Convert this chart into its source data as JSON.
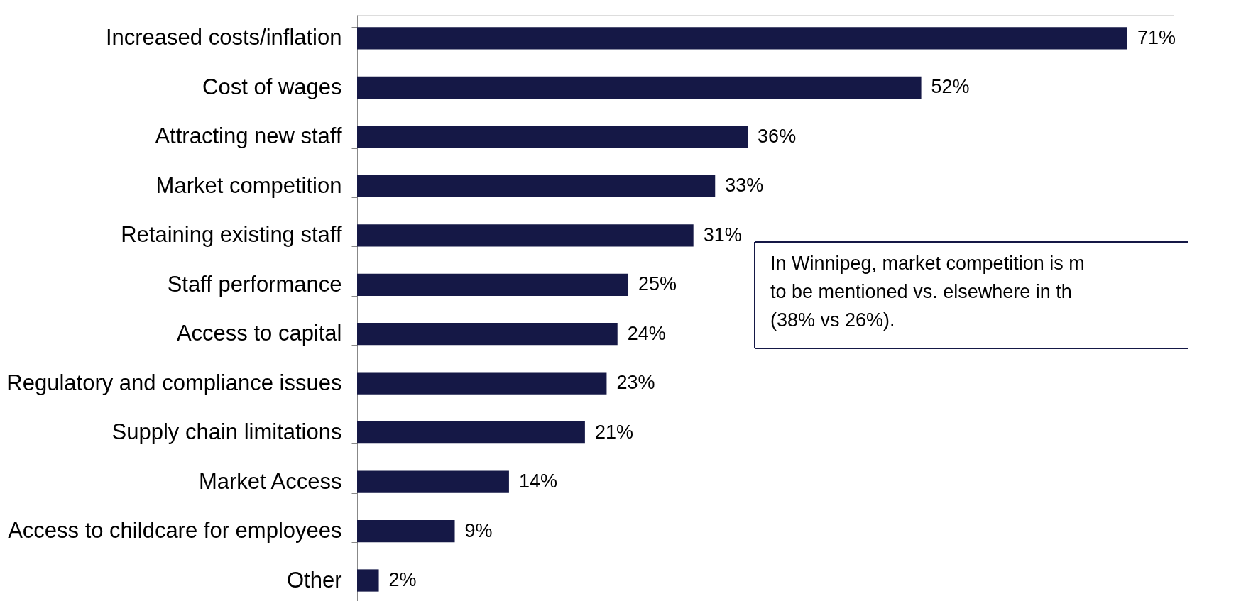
{
  "chart_data": {
    "type": "bar",
    "orientation": "horizontal",
    "categories": [
      "Increased costs/inflation",
      "Cost of wages",
      "Attracting new staff",
      "Market competition",
      "Retaining existing staff",
      "Staff performance",
      "Access to capital",
      "Regulatory and compliance issues",
      "Supply chain limitations",
      "Market Access",
      "Access to childcare for employees",
      "Other"
    ],
    "values": [
      71,
      52,
      36,
      33,
      31,
      25,
      24,
      23,
      21,
      14,
      9,
      2
    ],
    "value_labels": [
      "71%",
      "52%",
      "36%",
      "33%",
      "31%",
      "25%",
      "24%",
      "23%",
      "21%",
      "14%",
      "9%",
      "2%"
    ],
    "color": "#151846",
    "grid": false,
    "annotations": [
      "In Winnipeg, market competition is m\nto be mentioned vs. elsewhere in th\n(38% vs 26%)."
    ]
  }
}
